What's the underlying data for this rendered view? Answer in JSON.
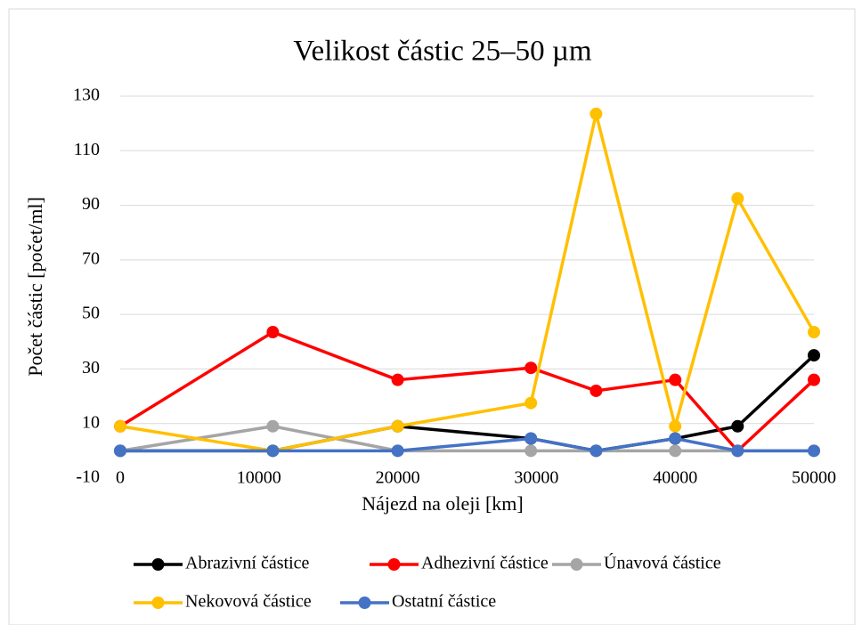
{
  "chart_data": {
    "type": "line",
    "title": "Velikost částic 25–50 µm",
    "x_label": "Nájezd na oleji [km]",
    "y_label": "Počet částic [počet/ml]",
    "x": [
      0,
      11000,
      20000,
      29600,
      34300,
      40000,
      44500,
      50000
    ],
    "series": [
      {
        "name": "Abrazivní částice",
        "color": "#000000",
        "values": [
          0,
          0,
          9,
          4.5,
          0,
          4.5,
          9,
          35
        ]
      },
      {
        "name": "Adhezivní částice",
        "color": "#ff0000",
        "values": [
          9,
          43.5,
          26,
          30.4,
          22,
          26,
          0,
          26
        ]
      },
      {
        "name": "Únavová částice",
        "color": "#a5a5a5",
        "values": [
          0,
          9,
          0,
          0,
          0,
          0,
          0,
          0
        ]
      },
      {
        "name": "Nekovová částice",
        "color": "#ffc000",
        "values": [
          9,
          0,
          9,
          17.5,
          123.5,
          9,
          92.5,
          43.5
        ]
      },
      {
        "name": "Ostatní částice",
        "color": "#4472c4",
        "values": [
          0,
          0,
          0,
          4.5,
          0,
          4.5,
          0,
          0
        ]
      }
    ],
    "xlim": [
      0,
      50000
    ],
    "xticks": [
      0,
      10000,
      20000,
      30000,
      40000,
      50000
    ],
    "ylim": [
      -10,
      130
    ],
    "yticks": [
      -10,
      10,
      30,
      50,
      70,
      90,
      110,
      130
    ],
    "grid": true,
    "legend": "bottom"
  }
}
